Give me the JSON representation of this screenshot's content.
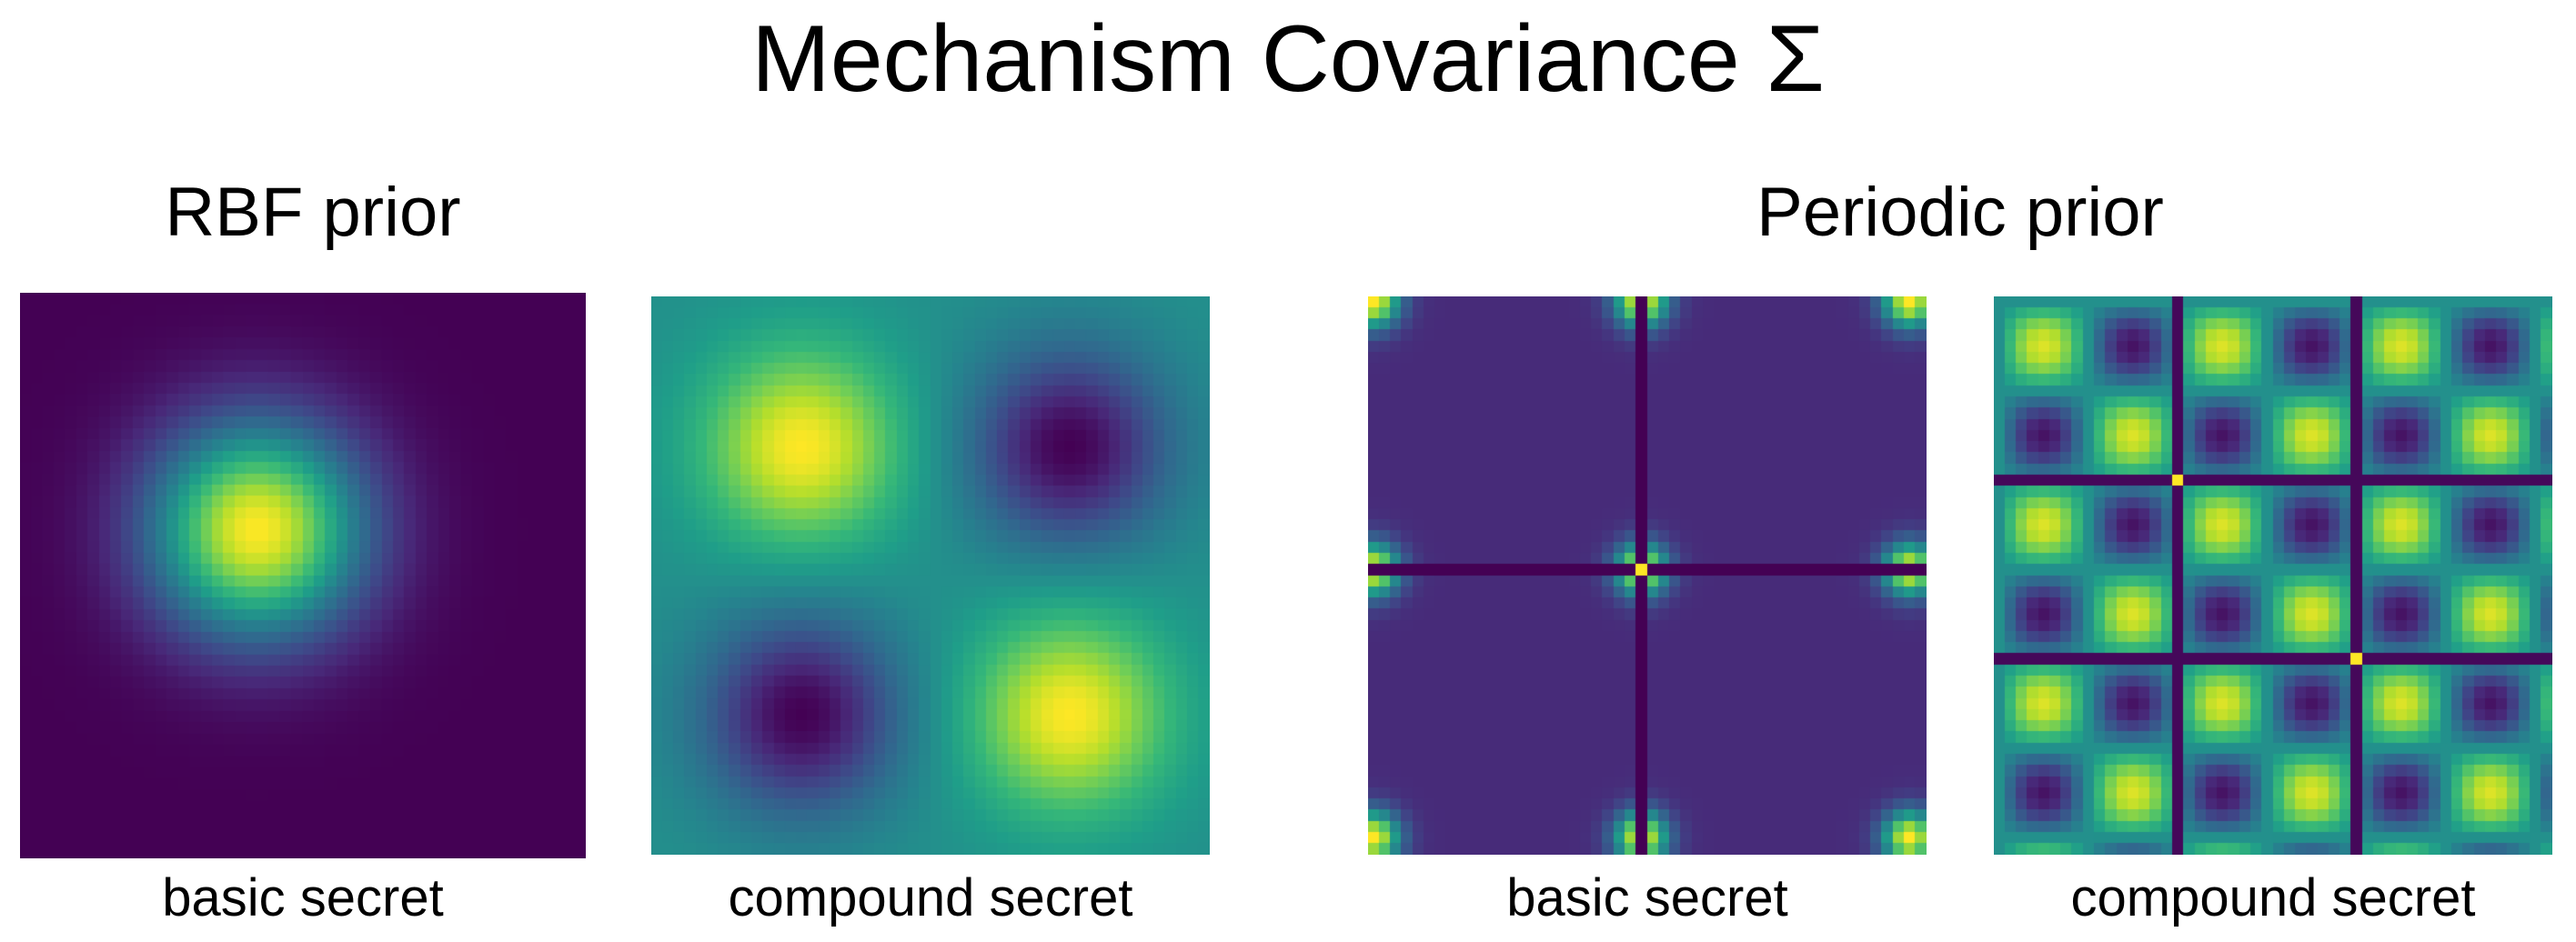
{
  "title": "Mechanism Covariance Σ",
  "chart_data": {
    "type": "heatmap",
    "colormap": "viridis",
    "groups": [
      {
        "title": "RBF prior",
        "panels": [
          {
            "label": "basic secret",
            "kernel": "rbf",
            "secret": "basic"
          },
          {
            "label": "compound secret",
            "kernel": "rbf",
            "secret": "compound"
          }
        ]
      },
      {
        "title": "Periodic prior",
        "panels": [
          {
            "label": "basic secret",
            "kernel": "periodic",
            "secret": "basic"
          },
          {
            "label": "compound secret",
            "kernel": "periodic",
            "secret": "compound"
          }
        ]
      }
    ]
  }
}
